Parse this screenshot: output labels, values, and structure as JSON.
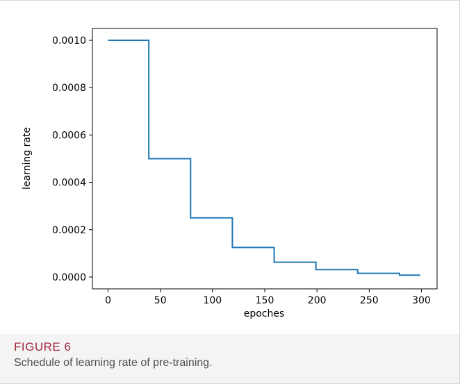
{
  "figure": {
    "label": "FIGURE 6",
    "caption": "Schedule of learning rate of pre-training."
  },
  "chart_data": {
    "type": "line",
    "title": "",
    "xlabel": "epoches",
    "ylabel": "learning rate",
    "xlim": [
      -15,
      315
    ],
    "ylim": [
      -5e-05,
      0.00105
    ],
    "x_ticks": [
      0,
      50,
      100,
      150,
      200,
      250,
      300
    ],
    "x_tick_labels": [
      "0",
      "50",
      "100",
      "150",
      "200",
      "250",
      "300"
    ],
    "y_ticks": [
      0,
      0.0002,
      0.0004,
      0.0006,
      0.0008,
      0.001
    ],
    "y_tick_labels": [
      "0.0000",
      "0.0002",
      "0.0004",
      "0.0006",
      "0.0008",
      "0.0010"
    ],
    "grid": false,
    "series": [
      {
        "color": "#1f77b4",
        "x": [
          0,
          39,
          39,
          79,
          79,
          119,
          119,
          159,
          159,
          199,
          199,
          239,
          239,
          279,
          279,
          299
        ],
        "values": [
          0.001,
          0.001,
          0.0005,
          0.0005,
          0.00025,
          0.00025,
          0.000125,
          0.000125,
          6.25e-05,
          6.25e-05,
          3.125e-05,
          3.125e-05,
          1.5625e-05,
          1.5625e-05,
          7.8125e-06,
          7.8125e-06
        ]
      }
    ]
  }
}
